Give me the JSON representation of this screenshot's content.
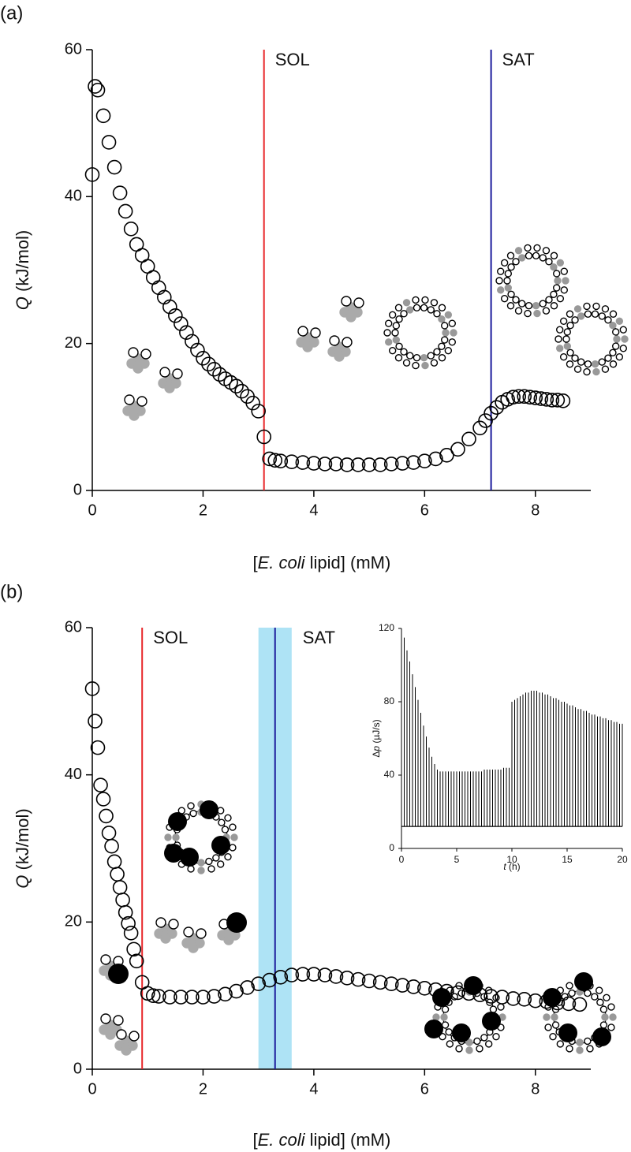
{
  "chart_data": [
    {
      "type": "scatter",
      "panel": "(a)",
      "xlabel": [
        "[",
        "E. coli",
        " lipid] (mM)"
      ],
      "ylabel": [
        "Q",
        " (kJ/mol)"
      ],
      "xlim": [
        0,
        9
      ],
      "ylim": [
        0,
        60
      ],
      "xticks": [
        0,
        2,
        4,
        6,
        8
      ],
      "yticks": [
        0,
        20,
        40,
        60
      ],
      "grid": false,
      "color": "#000000",
      "annotations": [
        {
          "text": "SOL",
          "x": 3.1,
          "color": "#e8262a"
        },
        {
          "text": "SAT",
          "x": 7.2,
          "color": "#1c1c9c"
        }
      ],
      "x": [
        0,
        0.05,
        0.1,
        0.2,
        0.3,
        0.4,
        0.5,
        0.6,
        0.7,
        0.8,
        0.9,
        1.0,
        1.1,
        1.2,
        1.3,
        1.4,
        1.5,
        1.6,
        1.7,
        1.8,
        1.9,
        2.0,
        2.1,
        2.2,
        2.3,
        2.4,
        2.5,
        2.6,
        2.7,
        2.8,
        2.9,
        3.0,
        3.1,
        3.2,
        3.3,
        3.4,
        3.6,
        3.8,
        4.0,
        4.2,
        4.4,
        4.6,
        4.8,
        5.0,
        5.2,
        5.4,
        5.6,
        5.8,
        6.0,
        6.2,
        6.4,
        6.6,
        6.8,
        7.0,
        7.1,
        7.2,
        7.3,
        7.4,
        7.5,
        7.6,
        7.7,
        7.8,
        7.9,
        8.0,
        8.1,
        8.2,
        8.3,
        8.4,
        8.5
      ],
      "values": [
        43,
        55,
        54.5,
        51,
        47.4,
        44,
        40.5,
        38,
        35.6,
        33.5,
        32,
        30.5,
        29,
        27.6,
        26.3,
        25,
        23.8,
        22.7,
        21.5,
        20.3,
        19.1,
        18,
        17.2,
        16.5,
        15.8,
        15.2,
        14.7,
        14.2,
        13.5,
        12.8,
        11.9,
        10.8,
        7.3,
        4.3,
        4.1,
        4.0,
        3.9,
        3.8,
        3.7,
        3.6,
        3.6,
        3.5,
        3.5,
        3.5,
        3.5,
        3.6,
        3.7,
        3.8,
        4.0,
        4.3,
        4.8,
        5.6,
        7.0,
        8.5,
        9.5,
        10.5,
        11.3,
        12.0,
        12.4,
        12.7,
        12.8,
        12.8,
        12.7,
        12.6,
        12.5,
        12.4,
        12.3,
        12.3,
        12.2
      ]
    },
    {
      "type": "scatter",
      "panel": "(b)",
      "xlabel": [
        "[",
        "E. coli",
        " lipid] (mM)"
      ],
      "ylabel": [
        "Q",
        " (kJ/mol)"
      ],
      "xlim": [
        0,
        9
      ],
      "ylim": [
        0,
        60
      ],
      "xticks": [
        0,
        2,
        4,
        6,
        8
      ],
      "yticks": [
        0,
        20,
        40,
        60
      ],
      "grid": false,
      "color": "#000000",
      "annotations": [
        {
          "text": "SOL",
          "x": 0.9,
          "color": "#e8262a"
        },
        {
          "text": "SAT",
          "x": 3.3,
          "color": "#1c1c9c",
          "band": [
            3.0,
            3.6
          ],
          "band_color": "#aee3f5"
        }
      ],
      "x": [
        0,
        0.05,
        0.1,
        0.15,
        0.2,
        0.25,
        0.3,
        0.35,
        0.4,
        0.45,
        0.5,
        0.55,
        0.6,
        0.65,
        0.7,
        0.75,
        0.8,
        0.9,
        1.0,
        1.1,
        1.2,
        1.4,
        1.6,
        1.8,
        2.0,
        2.2,
        2.4,
        2.6,
        2.8,
        3.0,
        3.2,
        3.4,
        3.6,
        3.8,
        4.0,
        4.2,
        4.4,
        4.6,
        4.8,
        5.0,
        5.2,
        5.4,
        5.6,
        5.8,
        6.0,
        6.2,
        6.4,
        6.6,
        6.8,
        7.0,
        7.2,
        7.4,
        7.6,
        7.8,
        8.0,
        8.2,
        8.4,
        8.6,
        8.8
      ],
      "values": [
        51.7,
        47.3,
        43.7,
        38.6,
        36.7,
        34.4,
        32.1,
        30.3,
        28.2,
        26.5,
        24.7,
        23.0,
        21.3,
        19.8,
        18.5,
        16.3,
        14.7,
        11.8,
        10.3,
        10.0,
        9.9,
        9.8,
        9.8,
        9.8,
        9.8,
        9.9,
        10.2,
        10.6,
        11.1,
        11.6,
        12.1,
        12.5,
        12.8,
        12.9,
        12.9,
        12.8,
        12.6,
        12.4,
        12.2,
        12.0,
        11.8,
        11.6,
        11.4,
        11.2,
        11.0,
        10.8,
        10.6,
        10.4,
        10.3,
        10.1,
        9.9,
        9.8,
        9.6,
        9.5,
        9.3,
        9.2,
        9.0,
        8.9,
        8.8
      ]
    },
    {
      "type": "bar",
      "xlabel": [
        "t",
        " (h)"
      ],
      "ylabel": [
        "Δ",
        "p",
        " (µJ/s)"
      ],
      "xlim": [
        0,
        20
      ],
      "ylim": [
        0,
        120
      ],
      "xticks": [
        0,
        5,
        10,
        15,
        20
      ],
      "yticks": [
        0,
        40,
        80,
        120
      ],
      "grid": false,
      "color": "#000000",
      "baseline": 12,
      "x": [
        0.25,
        0.5,
        0.75,
        1,
        1.25,
        1.5,
        1.75,
        2,
        2.25,
        2.5,
        2.75,
        3,
        3.25,
        3.5,
        3.75,
        4,
        4.25,
        4.5,
        4.75,
        5,
        5.25,
        5.5,
        5.75,
        6,
        6.25,
        6.5,
        6.75,
        7,
        7.25,
        7.5,
        7.75,
        8,
        8.25,
        8.5,
        8.75,
        9,
        9.25,
        9.5,
        9.75,
        10,
        10.25,
        10.5,
        10.75,
        11,
        11.25,
        11.5,
        11.75,
        12,
        12.25,
        12.5,
        12.75,
        13,
        13.25,
        13.5,
        13.75,
        14,
        14.25,
        14.5,
        14.75,
        15,
        15.25,
        15.5,
        15.75,
        16,
        16.25,
        16.5,
        16.75,
        17,
        17.25,
        17.5,
        17.75,
        18,
        18.25,
        18.5,
        18.75,
        19,
        19.25,
        19.5,
        19.75,
        20
      ],
      "values": [
        115,
        108,
        102,
        95,
        88,
        81,
        74,
        67,
        61,
        55,
        50,
        46,
        43,
        42,
        42,
        42,
        42,
        42,
        42,
        42,
        42,
        42,
        42,
        42,
        42,
        42,
        42,
        42,
        42,
        43,
        43,
        43,
        43,
        43,
        43,
        43,
        44,
        44,
        44,
        80,
        81,
        82,
        83,
        84,
        85,
        85,
        86,
        86,
        86,
        85,
        85,
        84,
        84,
        83,
        82,
        82,
        81,
        80,
        80,
        79,
        78,
        78,
        77,
        76,
        76,
        75,
        75,
        74,
        73,
        73,
        72,
        72,
        71,
        71,
        70,
        70,
        69,
        69,
        68,
        68
      ]
    }
  ]
}
